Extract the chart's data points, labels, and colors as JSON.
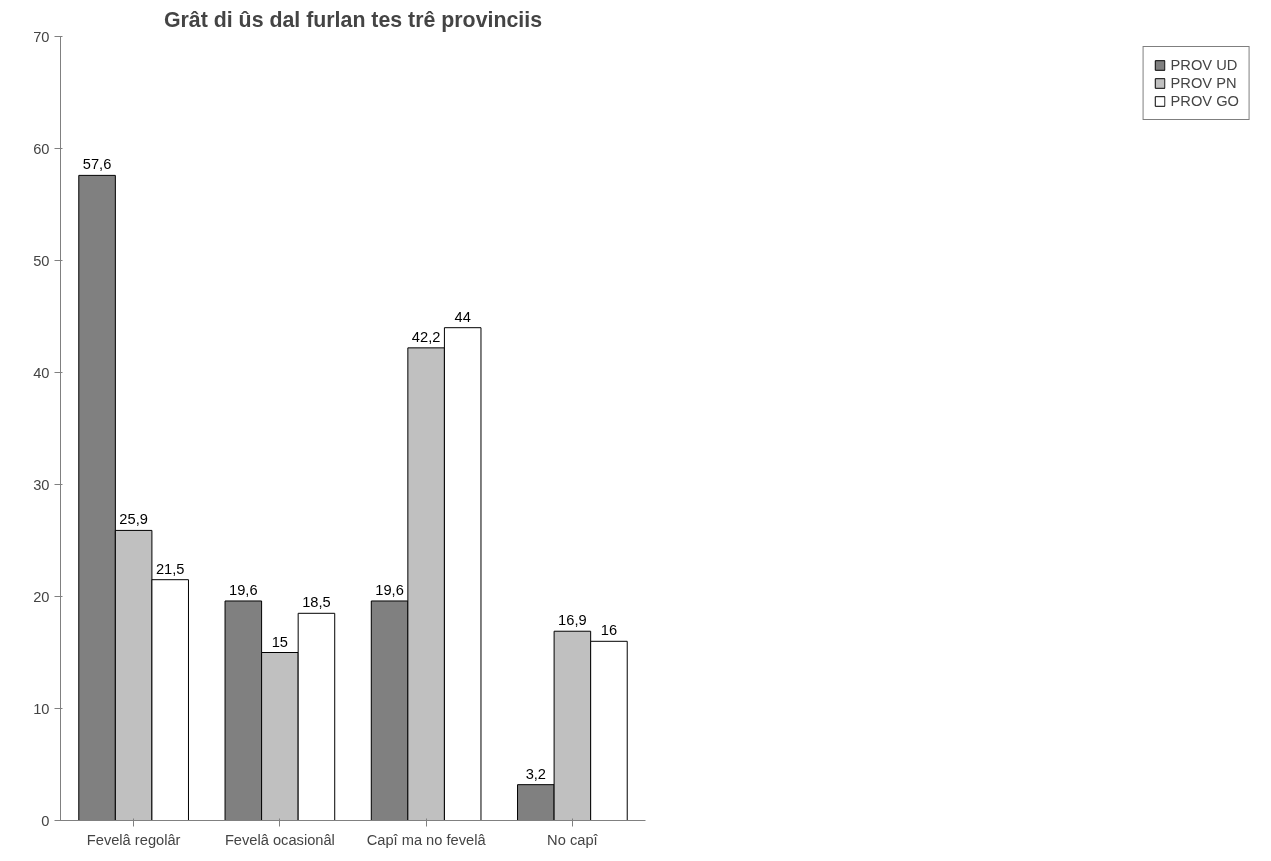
{
  "chart_data": {
    "type": "bar",
    "title": "Grât di ûs dal furlan tes trê provinciis",
    "categories": [
      "Fevelâ regolâr",
      "Fevelâ ocasionâl",
      "Capî ma no fevelâ",
      "No capî"
    ],
    "series": [
      {
        "name": "PROV UD",
        "color": "#808080",
        "values": [
          57.6,
          19.6,
          19.6,
          3.2
        ],
        "value_labels": [
          "57,6",
          "19,6",
          "19,6",
          "3,2"
        ]
      },
      {
        "name": "PROV PN",
        "color": "#c0c0c0",
        "values": [
          25.9,
          15,
          42.2,
          16.9
        ],
        "value_labels": [
          "25,9",
          "15",
          "42,2",
          "16,9"
        ]
      },
      {
        "name": "PROV GO",
        "color": "#ffffff",
        "values": [
          21.5,
          18.5,
          44,
          16
        ],
        "value_labels": [
          "21,5",
          "18,5",
          "44",
          "16"
        ]
      }
    ],
    "ylim": [
      0,
      70
    ],
    "yticks": [
      0,
      10,
      20,
      30,
      40,
      50,
      60,
      70
    ],
    "grid": false,
    "legend": "right"
  }
}
